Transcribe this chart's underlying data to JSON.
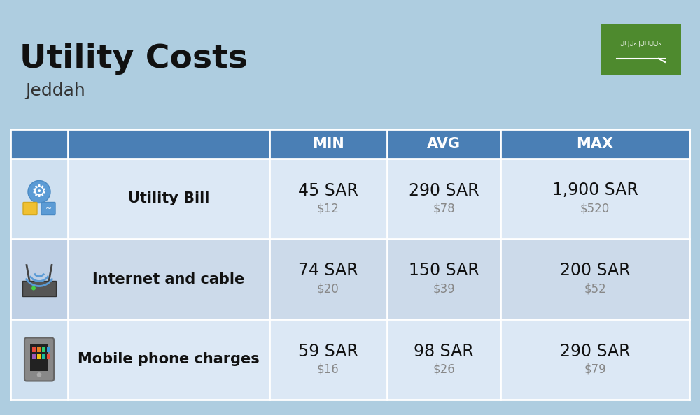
{
  "title": "Utility Costs",
  "subtitle": "Jeddah",
  "background_color": "#aecde0",
  "header_color": "#4a7fb5",
  "header_text_color": "#ffffff",
  "row_color_odd": "#dce8f5",
  "row_color_even": "#ccdaea",
  "icon_col_color_odd": "#cfe0f0",
  "icon_col_color_even": "#bfd0e5",
  "table_border_color": "#ffffff",
  "columns": [
    "",
    "",
    "MIN",
    "AVG",
    "MAX"
  ],
  "rows": [
    {
      "label": "Utility Bill",
      "icon": "utility",
      "min_sar": "45 SAR",
      "min_usd": "$12",
      "avg_sar": "290 SAR",
      "avg_usd": "$78",
      "max_sar": "1,900 SAR",
      "max_usd": "$520"
    },
    {
      "label": "Internet and cable",
      "icon": "internet",
      "min_sar": "74 SAR",
      "min_usd": "$20",
      "avg_sar": "150 SAR",
      "avg_usd": "$39",
      "max_sar": "200 SAR",
      "max_usd": "$52"
    },
    {
      "label": "Mobile phone charges",
      "icon": "mobile",
      "min_sar": "59 SAR",
      "min_usd": "$16",
      "avg_sar": "98 SAR",
      "avg_usd": "$26",
      "max_sar": "290 SAR",
      "max_usd": "$79"
    }
  ],
  "flag_color": "#4e8a2e",
  "sar_fontsize": 17,
  "usd_fontsize": 12,
  "label_fontsize": 15,
  "header_fontsize": 15,
  "title_fontsize": 34,
  "subtitle_fontsize": 18
}
